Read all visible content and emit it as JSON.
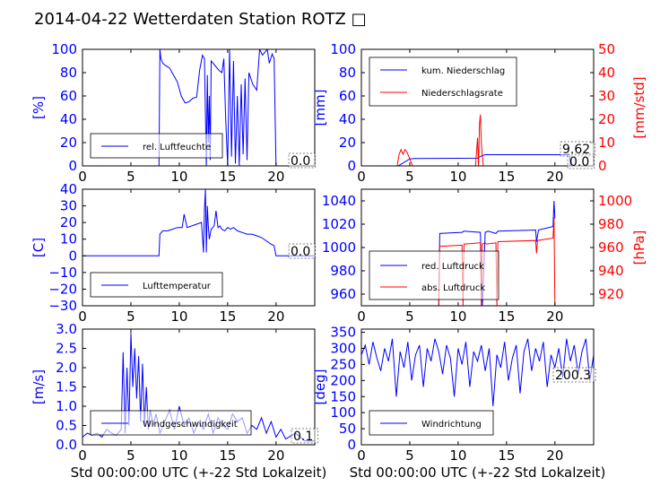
{
  "title": "2014-04-22 Wetterdaten Station ROTZ",
  "title_glyph": "□",
  "colors": {
    "blue": "#0000ff",
    "red": "#ff0000",
    "light_blue": "#8080ff",
    "black": "#000000"
  },
  "chart_data": [
    {
      "type": "line",
      "panel": "humidity",
      "ylabel": "[%]",
      "xlim": [
        0,
        24
      ],
      "ylim": [
        0,
        100
      ],
      "xticks": [
        "0",
        "5",
        "10",
        "15",
        "20"
      ],
      "yticks": [
        "0",
        "20",
        "40",
        "60",
        "80",
        "100"
      ],
      "legend": [
        "rel. Luftfeuchte"
      ],
      "legend_position": "lower-left",
      "annotation": "0.0",
      "series": [
        {
          "name": "rel. Luftfeuchte",
          "color": "#0000ff",
          "x": [
            0,
            7.9,
            8.0,
            8.1,
            8.3,
            8.6,
            9.0,
            9.4,
            9.8,
            10.2,
            10.6,
            11.0,
            11.4,
            11.8,
            12.1,
            12.4,
            12.6,
            12.8,
            12.9,
            13.0,
            13.1,
            13.2,
            13.3,
            13.5,
            13.8,
            14.1,
            14.4,
            14.6,
            14.8,
            15.0,
            15.2,
            15.4,
            15.6,
            15.8,
            16.0,
            16.2,
            16.4,
            16.6,
            16.8,
            17.0,
            17.2,
            17.6,
            18.0,
            18.3,
            18.6,
            18.9,
            19.1,
            19.3,
            19.6,
            19.8,
            20.0,
            20.2,
            24
          ],
          "y": [
            0,
            0,
            100,
            92,
            88,
            86,
            84,
            78,
            72,
            60,
            54,
            55,
            58,
            59,
            82,
            95,
            92,
            0,
            78,
            20,
            60,
            5,
            90,
            88,
            85,
            82,
            80,
            92,
            40,
            0,
            100,
            8,
            90,
            2,
            60,
            0,
            70,
            10,
            75,
            5,
            80,
            70,
            65,
            100,
            95,
            98,
            100,
            88,
            96,
            92,
            0,
            0,
            0
          ]
        }
      ]
    },
    {
      "type": "line",
      "panel": "precipitation",
      "ylabel": "[mm]",
      "ylabel_right": "[mm/std]",
      "xlim": [
        0,
        24
      ],
      "ylim": [
        0,
        100
      ],
      "ylim_right": [
        0,
        50
      ],
      "xticks": [
        "0",
        "5",
        "10",
        "15",
        "20"
      ],
      "yticks": [
        "0",
        "20",
        "40",
        "60",
        "80",
        "100"
      ],
      "yticks_right": [
        "0",
        "10",
        "20",
        "30",
        "40",
        "50"
      ],
      "legend": [
        "kum. Niederschlag",
        "Niederschlagsrate"
      ],
      "legend_position": "upper-left",
      "annotations": [
        "9.62",
        "0.0"
      ],
      "series": [
        {
          "name": "kum. Niederschlag",
          "color": "#0000ff",
          "axis": "left",
          "x": [
            0,
            3.8,
            4.2,
            4.6,
            5.0,
            5.5,
            12.0,
            12.4,
            12.8,
            14,
            18,
            21.5,
            21.6,
            24
          ],
          "y": [
            0,
            0,
            2,
            4,
            6,
            6.4,
            6.6,
            8.5,
            9.6,
            9.62,
            9.62,
            9.62,
            0,
            0
          ]
        },
        {
          "name": "Niederschlagsrate",
          "color": "#ff0000",
          "axis": "right",
          "x": [
            0,
            3.7,
            3.9,
            4.1,
            4.3,
            4.5,
            4.7,
            4.9,
            5.1,
            5.3,
            11.8,
            12.0,
            12.1,
            12.2,
            12.3,
            12.4,
            12.5,
            12.6,
            12.8,
            24
          ],
          "y": [
            0,
            0,
            5,
            7,
            5,
            7,
            6,
            4,
            2,
            0,
            0,
            12,
            0,
            18,
            22,
            10,
            4,
            0,
            0,
            0
          ]
        }
      ]
    },
    {
      "type": "line",
      "panel": "temperature",
      "ylabel": "[C]",
      "xlim": [
        0,
        24
      ],
      "ylim": [
        -30,
        40
      ],
      "xticks": [
        "0",
        "5",
        "10",
        "15",
        "20"
      ],
      "yticks": [
        "−30",
        "−20",
        "−10",
        "0",
        "10",
        "20",
        "30",
        "40"
      ],
      "legend": [
        "Lufttemperatur"
      ],
      "legend_position": "lower-left",
      "annotation": "0.0",
      "series": [
        {
          "name": "Lufttemperatur",
          "color": "#0000ff",
          "x": [
            0,
            7.9,
            8.0,
            8.3,
            8.8,
            9.3,
            9.8,
            10.3,
            10.5,
            10.8,
            11.3,
            11.8,
            12.3,
            12.5,
            12.6,
            12.7,
            12.8,
            12.9,
            13.0,
            13.1,
            13.3,
            13.6,
            13.8,
            14.0,
            14.2,
            14.4,
            14.7,
            15.0,
            15.3,
            15.6,
            16.0,
            16.5,
            17.0,
            17.5,
            18.0,
            18.5,
            19.0,
            19.5,
            19.8,
            20.0,
            24
          ],
          "y": [
            0,
            0,
            13,
            15,
            15,
            16,
            17,
            17,
            25,
            17,
            18,
            19,
            20,
            2,
            28,
            40,
            2,
            30,
            18,
            10,
            16,
            18,
            27,
            17,
            18,
            16,
            15,
            17,
            16,
            17,
            15,
            14,
            13,
            13,
            12,
            11,
            9,
            7,
            6,
            0,
            0
          ]
        }
      ]
    },
    {
      "type": "line",
      "panel": "pressure",
      "ylabel_right": "[hPa]",
      "xlim": [
        0,
        24
      ],
      "ylim": [
        950,
        1050
      ],
      "ylim_right": [
        910,
        1010
      ],
      "xticks": [
        "0",
        "5",
        "10",
        "15",
        "20"
      ],
      "yticks": [
        "960",
        "980",
        "1000",
        "1020",
        "1040"
      ],
      "yticks_right": [
        "920",
        "940",
        "960",
        "980",
        "1000"
      ],
      "legend": [
        "red. Luftdruck",
        "abs. Luftdruck"
      ],
      "legend_position": "lower-left",
      "series": [
        {
          "name": "red. Luftdruck",
          "color": "#0000ff",
          "axis": "left",
          "x": [
            8.0,
            8.1,
            10.4,
            10.6,
            12.3,
            12.5,
            12.8,
            13.1,
            13.9,
            14.1,
            18.0,
            18.1,
            18.3,
            19.8,
            19.9,
            20.0
          ],
          "y": [
            950,
            1012,
            1013,
            1014,
            1013,
            950,
            1013,
            1014,
            1012,
            1014,
            1015,
            1005,
            1015,
            1018,
            1040,
            1025
          ]
        },
        {
          "name": "abs. Luftdruck",
          "color": "#ff0000",
          "axis": "right",
          "x": [
            0,
            7.9,
            8.0,
            8.1,
            10.4,
            10.5,
            10.6,
            10.7,
            12.3,
            12.4,
            12.5,
            12.8,
            12.9,
            13.9,
            14.0,
            14.1,
            18.0,
            18.1,
            18.2,
            19.8,
            19.9,
            20.0
          ],
          "y": [
            910,
            910,
            910,
            961,
            962,
            910,
            963,
            963,
            964,
            910,
            963,
            964,
            963,
            964,
            910,
            965,
            966,
            955,
            966,
            968,
            986,
            910
          ]
        }
      ]
    },
    {
      "type": "line",
      "panel": "wind-speed",
      "ylabel": "[m/s]",
      "xlabel": "Std 00:00:00 UTC (+-22 Std Lokalzeit)",
      "xlim": [
        0,
        24
      ],
      "ylim": [
        0,
        3.0
      ],
      "xticks": [
        "0",
        "5",
        "10",
        "15",
        "20"
      ],
      "yticks": [
        "0.0",
        "0.5",
        "1.0",
        "1.5",
        "2.0",
        "2.5",
        "3.0"
      ],
      "legend": [
        "Windgeschwindigkeit"
      ],
      "legend_position": "lower-left",
      "annotation": "0.1",
      "series": [
        {
          "name": "Windgeschwindigkeit",
          "color": "#0000ff",
          "x": [
            0,
            0.5,
            1,
            1.5,
            2,
            2.5,
            3,
            3.5,
            4,
            4.2,
            4.4,
            4.6,
            4.8,
            5.0,
            5.2,
            5.4,
            5.6,
            5.8,
            6.0,
            6.2,
            6.4,
            6.6,
            6.8,
            7.0,
            7.3,
            7.6,
            8.0,
            8.5,
            9.0,
            9.5,
            10.0,
            10.5,
            11.0,
            11.5,
            12.0,
            12.5,
            13.0,
            13.5,
            14.0,
            14.5,
            15.0,
            15.5,
            16.0,
            16.5,
            17.0,
            17.5,
            18.0,
            18.5,
            19.0,
            19.5,
            20.0,
            20.5,
            21,
            22,
            23,
            24
          ],
          "y": [
            0.2,
            0.3,
            0.25,
            0.3,
            0.2,
            0.4,
            0.3,
            0.25,
            0.4,
            2.4,
            0.3,
            2.0,
            0.5,
            2.9,
            1.5,
            2.5,
            1.2,
            2.3,
            0.6,
            2.1,
            0.5,
            1.5,
            0.4,
            0.9,
            0.5,
            0.8,
            0.3,
            0.6,
            0.9,
            0.4,
            1.0,
            0.5,
            0.7,
            0.3,
            0.6,
            0.4,
            0.8,
            0.3,
            0.7,
            0.5,
            0.4,
            0.8,
            0.6,
            0.7,
            0.3,
            0.5,
            0.4,
            0.7,
            0.3,
            0.6,
            0.2,
            0.4,
            0.15,
            0.3,
            0.1,
            0.1
          ]
        }
      ]
    },
    {
      "type": "line",
      "panel": "wind-direction",
      "ylabel": "[deg]",
      "xlabel": "Std 00:00:00 UTC (+-22 Std Lokalzeit)",
      "xlim": [
        0,
        24
      ],
      "ylim": [
        0,
        360
      ],
      "xticks": [
        "0",
        "5",
        "10",
        "15",
        "20"
      ],
      "yticks": [
        "0",
        "50",
        "100",
        "150",
        "200",
        "250",
        "300",
        "350"
      ],
      "legend": [
        "Windrichtung"
      ],
      "legend_position": "lower-left",
      "annotation": "200.3",
      "series": [
        {
          "name": "Windrichtung",
          "color": "#0000ff",
          "x": [
            0,
            0.4,
            0.8,
            1.2,
            1.6,
            2.0,
            2.4,
            2.8,
            3.2,
            3.6,
            4.0,
            4.4,
            4.8,
            5.2,
            5.6,
            6.0,
            6.4,
            6.8,
            7.2,
            7.6,
            8.0,
            8.4,
            8.8,
            9.2,
            9.6,
            10.0,
            10.4,
            10.8,
            11.2,
            11.6,
            12.0,
            12.4,
            12.8,
            13.2,
            13.6,
            14.0,
            14.4,
            14.8,
            15.2,
            15.6,
            16.0,
            16.4,
            16.8,
            17.2,
            17.6,
            18.0,
            18.4,
            18.8,
            19.2,
            19.6,
            20.0,
            20.4,
            20.8,
            21.2,
            21.6,
            22.0,
            22.4,
            22.8,
            23.2,
            23.6,
            24.0
          ],
          "y": [
            280,
            310,
            250,
            320,
            270,
            230,
            300,
            260,
            330,
            150,
            290,
            240,
            320,
            200,
            280,
            310,
            180,
            300,
            260,
            330,
            290,
            220,
            310,
            270,
            150,
            300,
            250,
            320,
            180,
            290,
            260,
            310,
            230,
            300,
            120,
            280,
            240,
            320,
            200,
            270,
            310,
            160,
            290,
            330,
            230,
            300,
            260,
            320,
            180,
            280,
            240,
            300,
            210,
            330,
            260,
            310,
            220,
            290,
            330,
            200,
            280
          ]
        }
      ]
    }
  ]
}
